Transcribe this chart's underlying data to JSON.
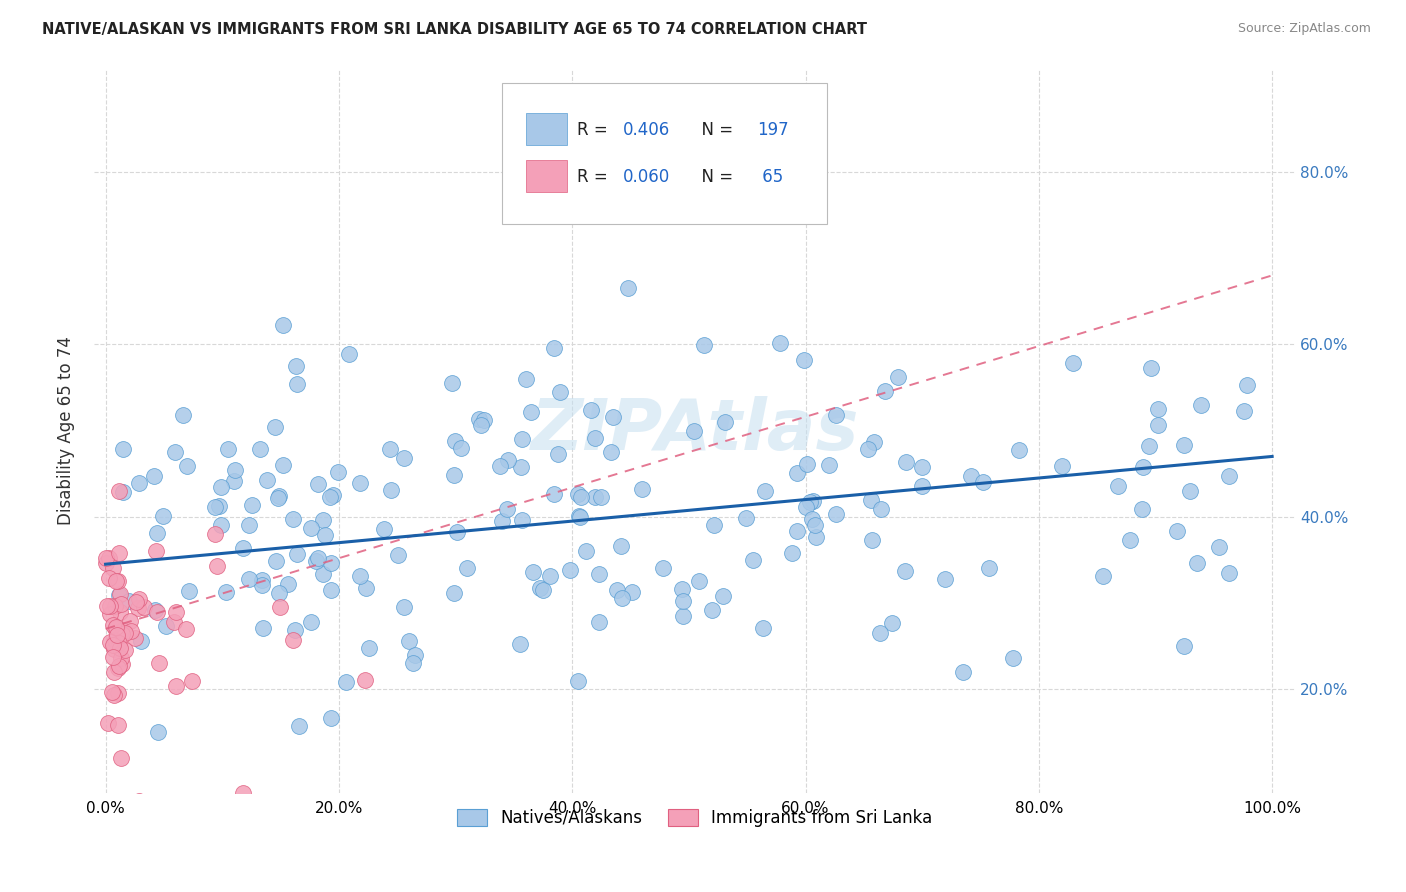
{
  "title": "NATIVE/ALASKAN VS IMMIGRANTS FROM SRI LANKA DISABILITY AGE 65 TO 74 CORRELATION CHART",
  "source": "Source: ZipAtlas.com",
  "ylabel": "Disability Age 65 to 74",
  "xlim": [
    -0.01,
    1.02
  ],
  "ylim": [
    0.08,
    0.92
  ],
  "color_blue": "#a8c8e8",
  "color_blue_edge": "#5a9fd4",
  "color_pink": "#f4a0b8",
  "color_pink_edge": "#e06080",
  "color_line_blue": "#1a5fa8",
  "color_line_pink": "#e06080",
  "color_grid": "#d8d8d8",
  "color_raxis": "#3a7abf",
  "watermark_color": "#c5dff0",
  "blue_line_start_y": 0.345,
  "blue_line_end_y": 0.47,
  "pink_line_start_x": 0.0,
  "pink_line_start_y": 0.27,
  "pink_line_end_x": 1.0,
  "pink_line_end_y": 0.68
}
